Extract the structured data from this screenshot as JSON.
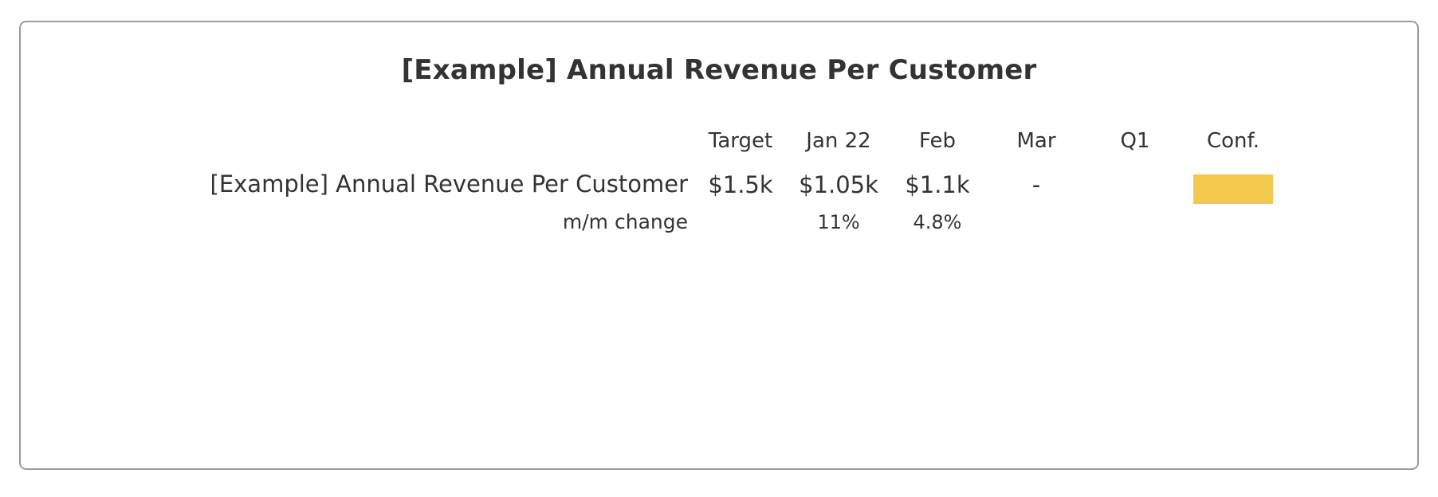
{
  "title": "[Example] Annual Revenue Per Customer",
  "columns": {
    "target": "Target",
    "jan": "Jan 22",
    "feb": "Feb",
    "mar": "Mar",
    "q1": "Q1",
    "conf": "Conf."
  },
  "row": {
    "label": "[Example] Annual Revenue Per Customer",
    "target": "$1.5k",
    "jan": "$1.05k",
    "feb": "$1.1k",
    "mar": "-",
    "q1": ""
  },
  "change_row": {
    "label": "m/m change",
    "jan": "11%",
    "feb": "4.8%"
  },
  "colors": {
    "confidence": "#F2C94C",
    "text": "#333333",
    "border": "#9A9A9A"
  }
}
